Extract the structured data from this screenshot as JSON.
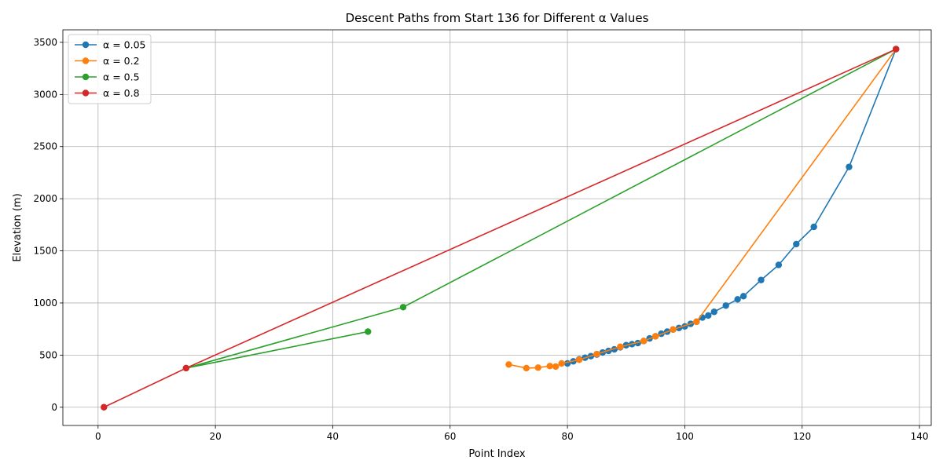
{
  "chart_data": {
    "type": "line",
    "title": "Descent Paths from Start 136 for Different α Values",
    "xlabel": "Point Index",
    "ylabel": "Elevation (m)",
    "xlim": [
      -6,
      142
    ],
    "ylim": [
      -175,
      3620
    ],
    "xticks": [
      0,
      20,
      40,
      60,
      80,
      100,
      120,
      140
    ],
    "yticks": [
      0,
      500,
      1000,
      1500,
      2000,
      2500,
      3000,
      3500
    ],
    "grid": true,
    "legend_position": "top-left",
    "series": [
      {
        "name": "α = 0.05",
        "color": "#1f77b4",
        "points": [
          [
            136,
            3435
          ],
          [
            128,
            2305
          ],
          [
            122,
            1730
          ],
          [
            119,
            1565
          ],
          [
            116,
            1365
          ],
          [
            113,
            1220
          ],
          [
            110,
            1065
          ],
          [
            109,
            1035
          ],
          [
            107,
            975
          ],
          [
            105,
            915
          ],
          [
            104,
            880
          ],
          [
            103,
            860
          ],
          [
            102,
            820
          ],
          [
            101,
            800
          ],
          [
            100,
            775
          ],
          [
            99,
            760
          ],
          [
            98,
            745
          ],
          [
            97,
            725
          ],
          [
            96,
            705
          ],
          [
            95,
            680
          ],
          [
            94,
            660
          ],
          [
            93,
            635
          ],
          [
            92,
            615
          ],
          [
            91,
            605
          ],
          [
            90,
            595
          ],
          [
            89,
            575
          ],
          [
            88,
            555
          ],
          [
            87,
            540
          ],
          [
            86,
            525
          ],
          [
            85,
            505
          ],
          [
            84,
            490
          ],
          [
            83,
            475
          ],
          [
            82,
            460
          ],
          [
            81,
            440
          ],
          [
            80,
            420
          ]
        ]
      },
      {
        "name": "α = 0.2",
        "color": "#ff7f0e",
        "points": [
          [
            136,
            3435
          ],
          [
            102,
            820
          ],
          [
            98,
            745
          ],
          [
            95,
            680
          ],
          [
            93,
            635
          ],
          [
            89,
            580
          ],
          [
            85,
            510
          ],
          [
            82,
            455
          ],
          [
            79,
            420
          ],
          [
            78,
            390
          ],
          [
            77,
            395
          ],
          [
            75,
            380
          ],
          [
            73,
            375
          ],
          [
            70,
            410
          ]
        ]
      },
      {
        "name": "α = 0.5",
        "color": "#2ca02c",
        "points": [
          [
            136,
            3435
          ],
          [
            52,
            960
          ],
          [
            15,
            375
          ],
          [
            46,
            725
          ]
        ]
      },
      {
        "name": "α = 0.8",
        "color": "#d62728",
        "points": [
          [
            136,
            3435
          ],
          [
            15,
            375
          ],
          [
            1,
            0
          ]
        ]
      }
    ]
  }
}
